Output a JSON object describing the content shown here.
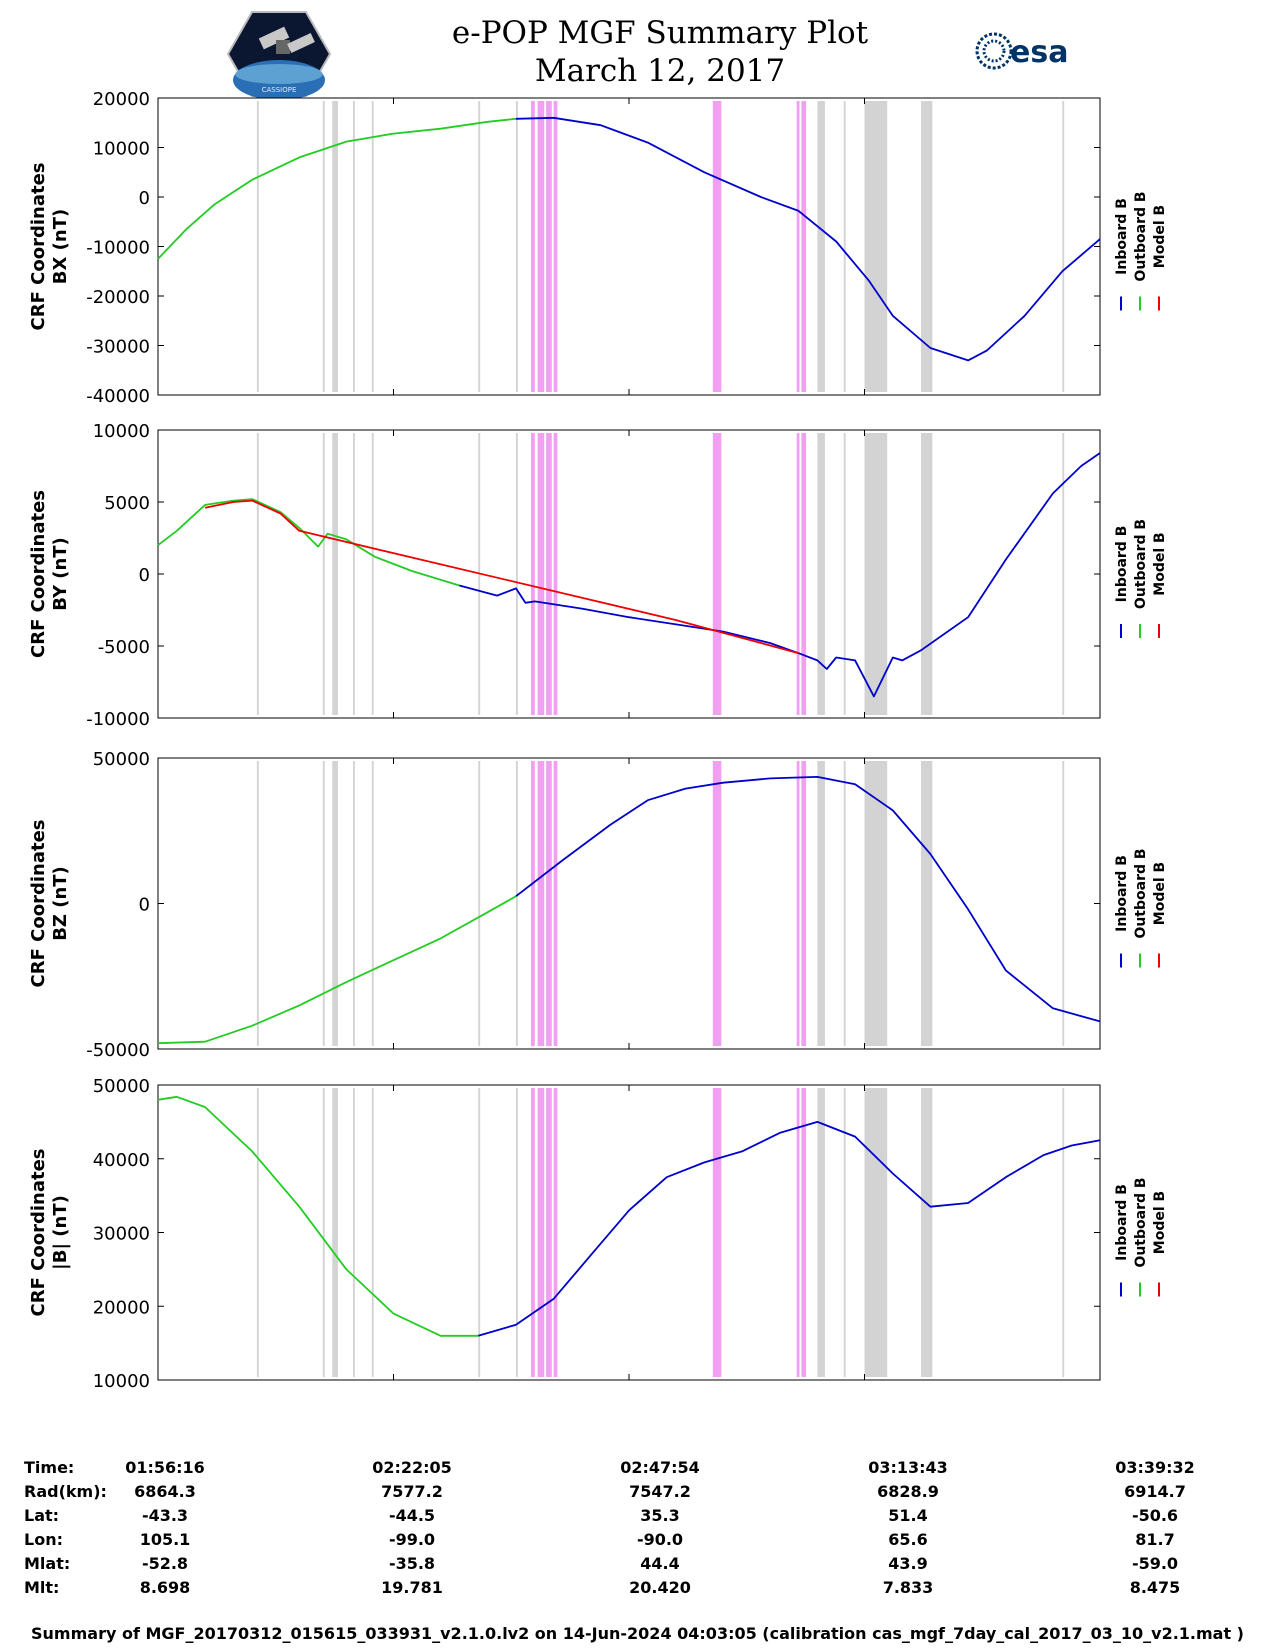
{
  "title": {
    "line1": "e-POP MGF Summary Plot",
    "line2": "March 12, 2017"
  },
  "logos": {
    "left": "CASSIOPE",
    "right": "esa"
  },
  "colors": {
    "inboard": "#0000cc",
    "outboard": "#22cc22",
    "model": "#ee0000",
    "gray_band": "#d3d3d3",
    "pink_band": "#f0a0f0"
  },
  "legend": [
    "Inboard B",
    "Outboard B",
    "Model B"
  ],
  "chart_data": [
    {
      "type": "line",
      "panel": "bx",
      "ylabel": [
        "CRF Coordinates",
        "BX (nT)"
      ],
      "ylim": [
        -40000,
        20000
      ],
      "yticks": [
        "20000",
        "10000",
        "0",
        "-10000",
        "-20000",
        "-30000",
        "-40000"
      ],
      "ytick_values": [
        20000,
        10000,
        0,
        -10000,
        -20000,
        -30000,
        -40000
      ],
      "series": [
        {
          "name": "Outboard B",
          "x": [
            0,
            0.03,
            0.06,
            0.1,
            0.15,
            0.2,
            0.25,
            0.3,
            0.35,
            0.38
          ],
          "y": [
            -12500,
            -6500,
            -1500,
            3500,
            8000,
            11200,
            12800,
            13800,
            15200,
            15800
          ]
        },
        {
          "name": "Inboard B",
          "x": [
            0.38,
            0.42,
            0.47,
            0.52,
            0.58,
            0.64,
            0.68,
            0.72,
            0.755,
            0.78,
            0.82,
            0.86,
            0.88,
            0.92,
            0.96,
            1.0
          ],
          "y": [
            15800,
            16000,
            14500,
            11000,
            5000,
            0,
            -2800,
            -9000,
            -17000,
            -24000,
            -30500,
            -33000,
            -31000,
            -24000,
            -15000,
            -8500
          ]
        }
      ]
    },
    {
      "type": "line",
      "panel": "by",
      "ylabel": [
        "CRF Coordinates",
        "BY (nT)"
      ],
      "ylim": [
        -10000,
        10000
      ],
      "yticks": [
        "10000",
        "5000",
        "0",
        "-5000",
        "-10000"
      ],
      "ytick_values": [
        10000,
        5000,
        0,
        -5000,
        -10000
      ],
      "series": [
        {
          "name": "Outboard B",
          "x": [
            0,
            0.02,
            0.05,
            0.08,
            0.1,
            0.13,
            0.15,
            0.17,
            0.18,
            0.2,
            0.23,
            0.27,
            0.32
          ],
          "y": [
            2000,
            3000,
            4800,
            5100,
            5200,
            4300,
            3200,
            1900,
            2800,
            2400,
            1200,
            200,
            -800
          ]
        },
        {
          "name": "Inboard B",
          "x": [
            0.32,
            0.36,
            0.38,
            0.39,
            0.4,
            0.45,
            0.5,
            0.55,
            0.6,
            0.65,
            0.68,
            0.7,
            0.71,
            0.72,
            0.74,
            0.76,
            0.78,
            0.79,
            0.81,
            0.86,
            0.9,
            0.95,
            0.98,
            1.0
          ],
          "y": [
            -800,
            -1500,
            -1000,
            -2000,
            -1900,
            -2400,
            -3000,
            -3500,
            -4000,
            -4800,
            -5500,
            -6000,
            -6600,
            -5800,
            -6000,
            -8500,
            -5800,
            -6000,
            -5300,
            -3000,
            1000,
            5600,
            7500,
            8400
          ]
        },
        {
          "name": "Model B",
          "x": [
            0.05,
            0.08,
            0.1,
            0.13,
            0.15,
            0.55,
            0.68
          ],
          "y": [
            4600,
            5000,
            5100,
            4200,
            3000,
            -3200,
            -5500
          ]
        }
      ]
    },
    {
      "type": "line",
      "panel": "bz",
      "ylabel": [
        "CRF Coordinates",
        "BZ (nT)"
      ],
      "ylim": [
        -50000,
        50000
      ],
      "yticks": [
        "50000",
        "0",
        "-50000"
      ],
      "ytick_values": [
        50000,
        0,
        -50000
      ],
      "series": [
        {
          "name": "Outboard B",
          "x": [
            0,
            0.05,
            0.1,
            0.15,
            0.2,
            0.25,
            0.3,
            0.35,
            0.38
          ],
          "y": [
            -48000,
            -47500,
            -42000,
            -35000,
            -27000,
            -19500,
            -12000,
            -3000,
            2500
          ]
        },
        {
          "name": "Inboard B",
          "x": [
            0.38,
            0.43,
            0.48,
            0.52,
            0.56,
            0.6,
            0.65,
            0.7,
            0.74,
            0.78,
            0.82,
            0.86,
            0.9,
            0.95,
            1.0
          ],
          "y": [
            2500,
            15000,
            27000,
            35500,
            39500,
            41500,
            43000,
            43500,
            41000,
            32000,
            17000,
            -2000,
            -23000,
            -36000,
            -40500
          ]
        }
      ]
    },
    {
      "type": "line",
      "panel": "bmag",
      "ylabel": [
        "CRF Coordinates",
        "|B| (nT)"
      ],
      "ylim": [
        10000,
        50000
      ],
      "yticks": [
        "50000",
        "40000",
        "30000",
        "20000",
        "10000"
      ],
      "ytick_values": [
        50000,
        40000,
        30000,
        20000,
        10000
      ],
      "series": [
        {
          "name": "Outboard B",
          "x": [
            0,
            0.02,
            0.05,
            0.1,
            0.15,
            0.2,
            0.25,
            0.3,
            0.34
          ],
          "y": [
            48000,
            48400,
            47000,
            41000,
            33500,
            25000,
            19000,
            16000,
            16000
          ]
        },
        {
          "name": "Inboard B",
          "x": [
            0.34,
            0.38,
            0.42,
            0.46,
            0.5,
            0.54,
            0.58,
            0.62,
            0.66,
            0.7,
            0.74,
            0.78,
            0.82,
            0.86,
            0.9,
            0.94,
            0.97,
            1.0
          ],
          "y": [
            16000,
            17500,
            21000,
            27000,
            33000,
            37500,
            39500,
            41000,
            43500,
            45000,
            43000,
            38000,
            33500,
            34000,
            37500,
            40500,
            41800,
            42500
          ]
        }
      ]
    }
  ],
  "xaxis": {
    "tick_positions": [
      0,
      0.25,
      0.5,
      0.75,
      1.0
    ],
    "gray_bands": [
      [
        0.105,
        0.107
      ],
      [
        0.175,
        0.177
      ],
      [
        0.185,
        0.191
      ],
      [
        0.207,
        0.209
      ],
      [
        0.227,
        0.229
      ],
      [
        0.34,
        0.342
      ],
      [
        0.38,
        0.382
      ],
      [
        0.7,
        0.708
      ],
      [
        0.728,
        0.73
      ],
      [
        0.772,
        0.774
      ],
      [
        0.75,
        0.774
      ],
      [
        0.81,
        0.822
      ],
      [
        0.96,
        0.962
      ]
    ],
    "pink_bands": [
      [
        0.396,
        0.4
      ],
      [
        0.403,
        0.41
      ],
      [
        0.412,
        0.418
      ],
      [
        0.42,
        0.424
      ],
      [
        0.589,
        0.598
      ],
      [
        0.678,
        0.681
      ],
      [
        0.683,
        0.688
      ]
    ]
  },
  "info": {
    "labels": [
      "Time:",
      "Rad(km):",
      "Lat:",
      "Lon:",
      "Mlat:",
      "Mlt:"
    ],
    "columns": [
      [
        "01:56:16",
        "6864.3",
        "-43.3",
        "105.1",
        "-52.8",
        "8.698"
      ],
      [
        "02:22:05",
        "7577.2",
        "-44.5",
        "-99.0",
        "-35.8",
        "19.781"
      ],
      [
        "02:47:54",
        "7547.2",
        "35.3",
        "-90.0",
        "44.4",
        "20.420"
      ],
      [
        "03:13:43",
        "6828.9",
        "51.4",
        "65.6",
        "43.9",
        "7.833"
      ],
      [
        "03:39:32",
        "6914.7",
        "-50.6",
        "81.7",
        "-59.0",
        "8.475"
      ]
    ]
  },
  "footer": "Summary of MGF_20170312_015615_033931_v2.1.0.lv2 on 14-Jun-2024 04:03:05 (calibration cas_mgf_7day_cal_2017_03_10_v2.1.mat )"
}
